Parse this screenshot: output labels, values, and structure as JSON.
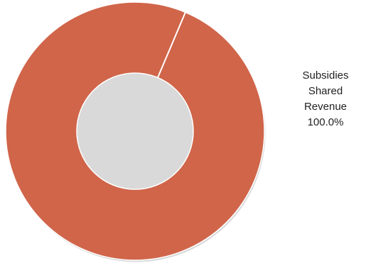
{
  "chart_data": {
    "type": "pie",
    "variant": "donut",
    "title": "",
    "slices": [
      {
        "label_lines": [
          "Subsidies",
          "Shared",
          "Revenue"
        ],
        "value": 100.0,
        "percent_label": "100.0%",
        "color": "#D0654A"
      }
    ],
    "legend": "none",
    "slice_border_color": "#FFFFFF",
    "data_label_position": "right"
  }
}
